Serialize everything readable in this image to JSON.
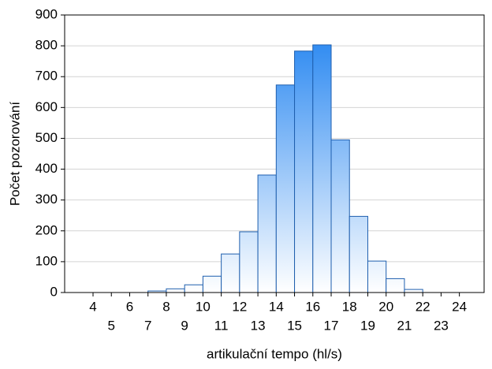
{
  "chart_data": {
    "type": "histogram",
    "xlabel": "artikulační tempo (hl/s)",
    "ylabel": "Počet pozorování",
    "bins": [
      4,
      5,
      6,
      7,
      8,
      9,
      10,
      11,
      12,
      13,
      14,
      15,
      16,
      17,
      18,
      19,
      20,
      21,
      22,
      23,
      24
    ],
    "values": [
      0,
      0,
      0,
      5,
      12,
      25,
      53,
      125,
      197,
      381,
      673,
      783,
      803,
      495,
      247,
      102,
      45,
      10,
      0,
      0
    ],
    "color": "#1a7ff0",
    "xlim": [
      2.45,
      25.35
    ],
    "xticks": [
      4,
      5,
      6,
      7,
      8,
      9,
      10,
      11,
      12,
      13,
      14,
      15,
      16,
      17,
      18,
      19,
      20,
      21,
      22,
      23,
      24
    ],
    "ylim": [
      0,
      900
    ],
    "yticks": [
      0,
      100,
      200,
      300,
      400,
      500,
      600,
      700,
      800,
      900
    ],
    "grid": true
  }
}
